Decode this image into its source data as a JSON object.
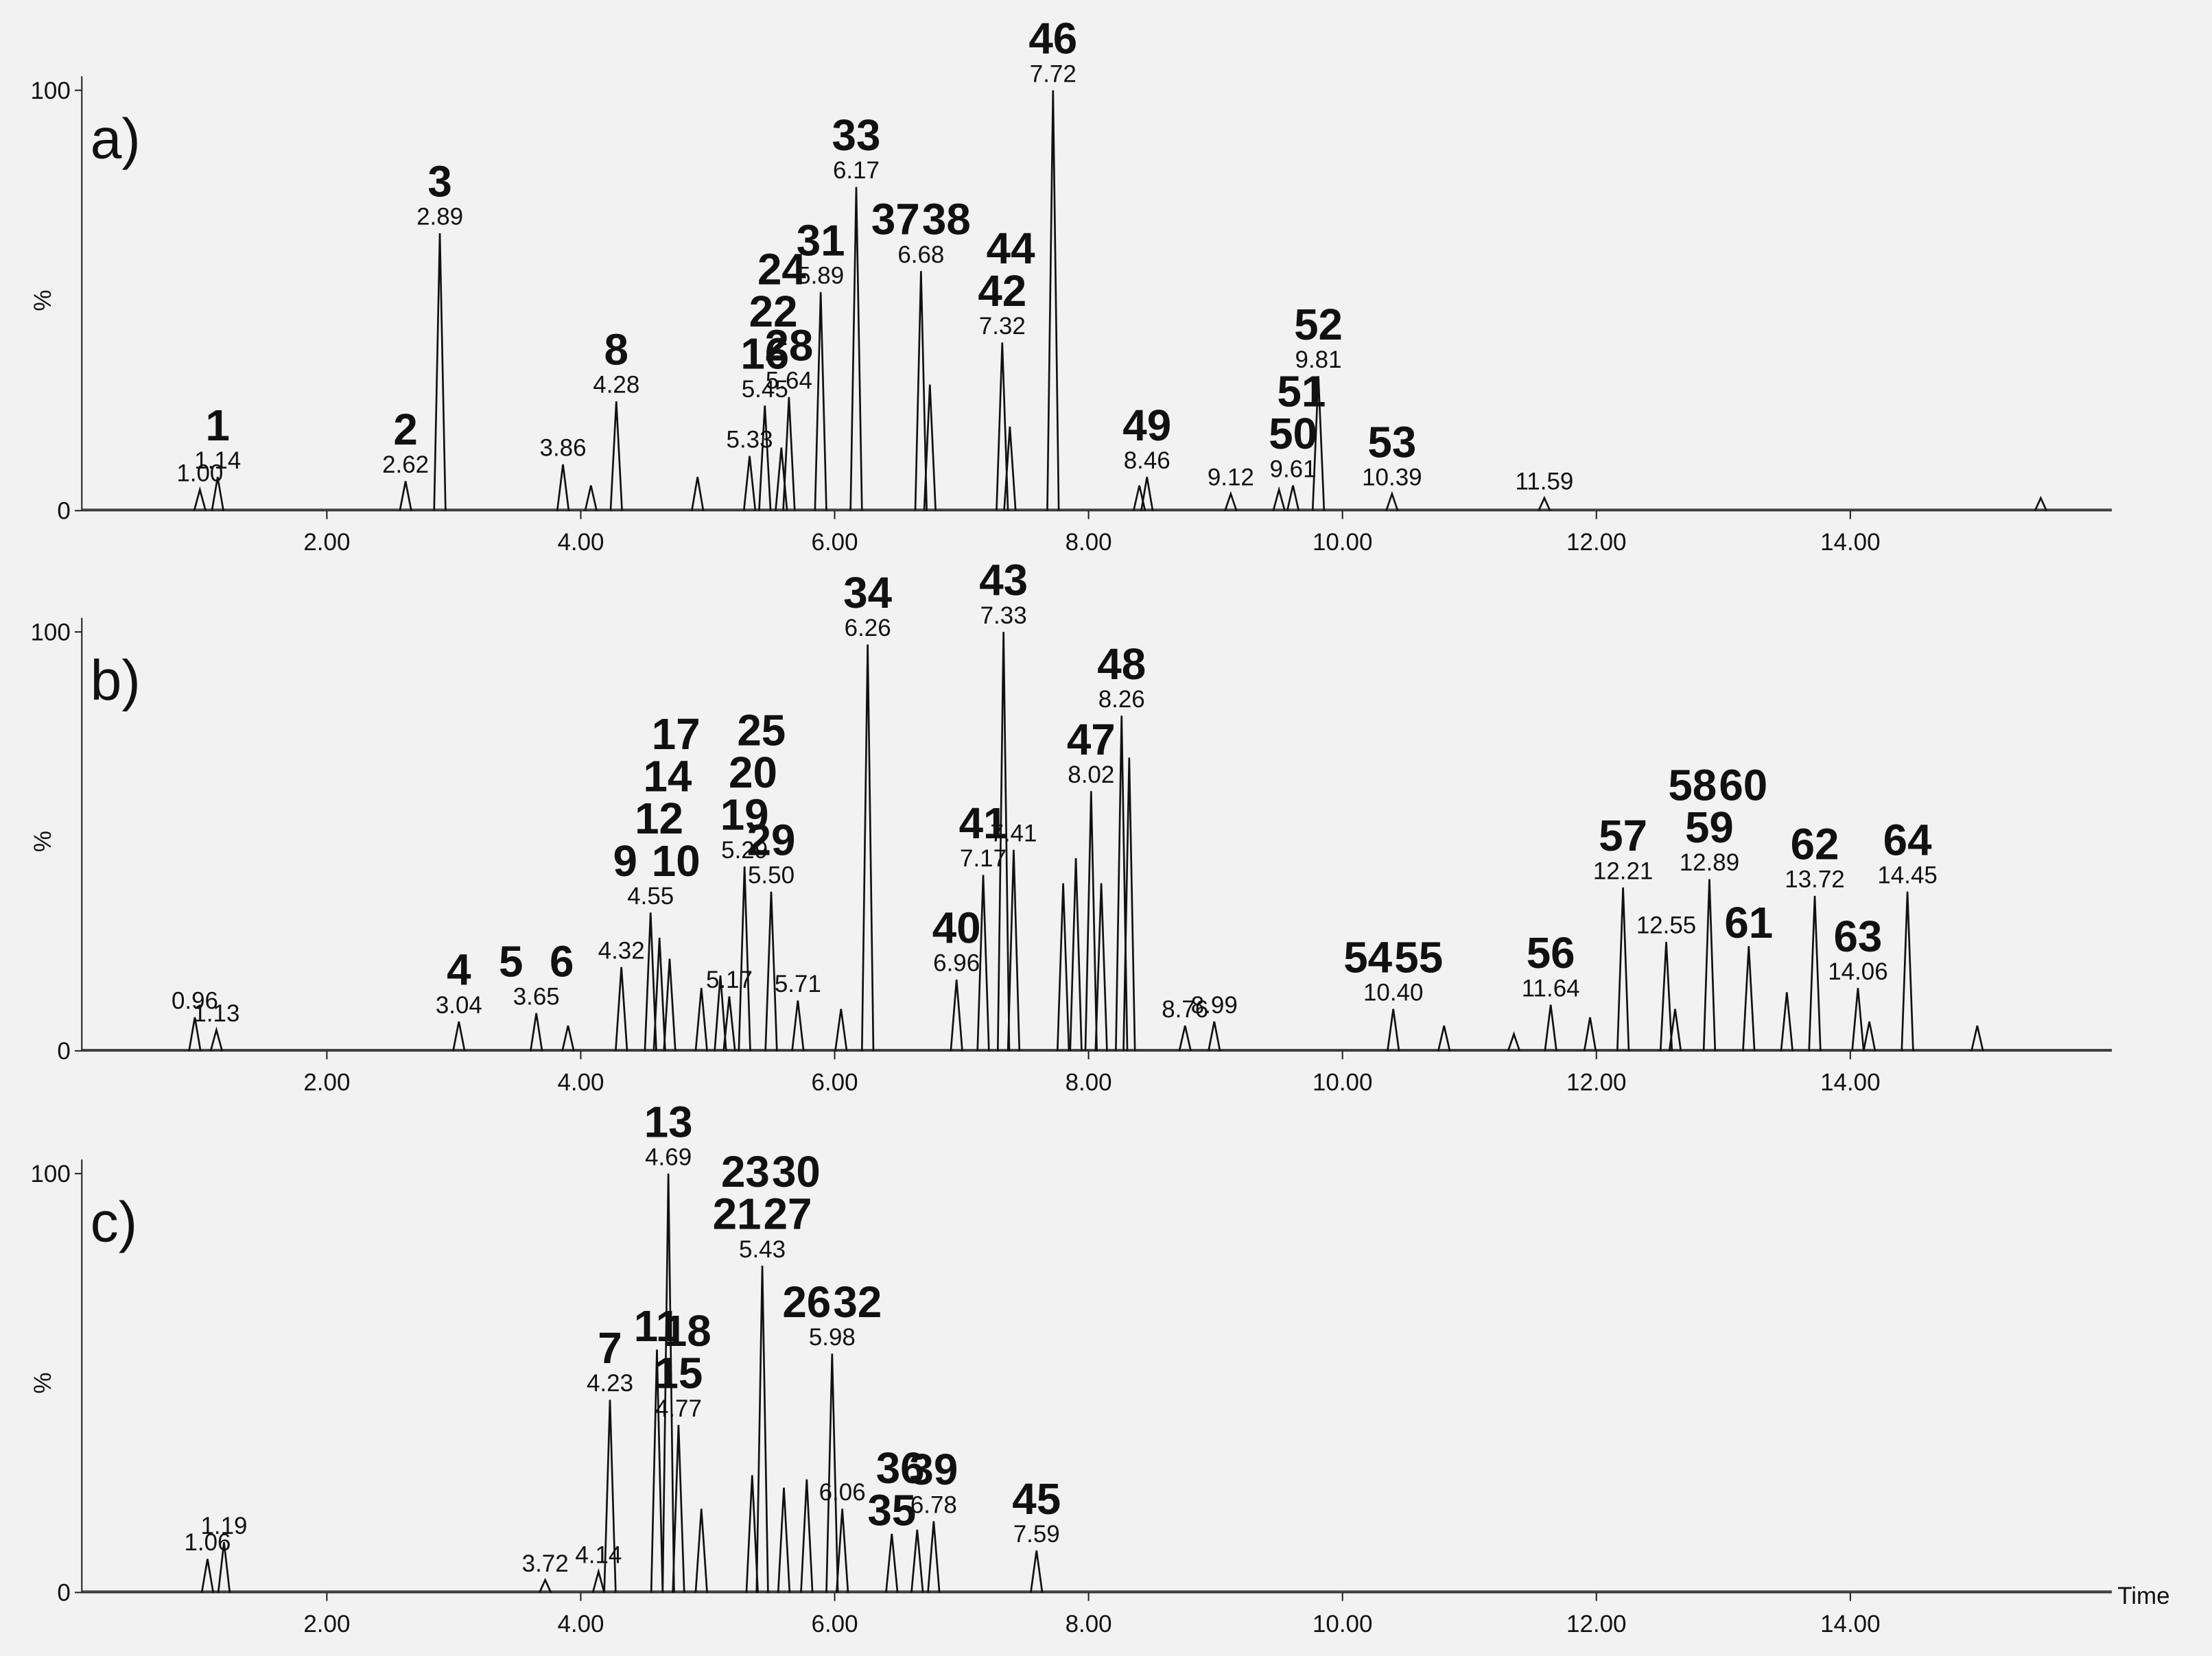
{
  "chart_data": [
    {
      "type": "line",
      "panel_label": "a)",
      "ylabel": "%",
      "xlim": [
        0.07,
        16.06
      ],
      "ylim": [
        0,
        100
      ],
      "xticks": [
        {
          "value": 2,
          "label": "2.00"
        },
        {
          "value": 4,
          "label": "4.00"
        },
        {
          "value": 6,
          "label": "6.00"
        },
        {
          "value": 8,
          "label": "8.00"
        },
        {
          "value": 10,
          "label": "10.00"
        },
        {
          "value": 12,
          "label": "12.00"
        },
        {
          "value": 14,
          "label": "14.00"
        }
      ],
      "yticks": [
        0,
        100
      ],
      "peaks": [
        {
          "x": 1.0,
          "y": 5,
          "label": "1.00"
        },
        {
          "x": 1.14,
          "y": 8,
          "label": "1.14",
          "ids": [
            [
              "1"
            ]
          ]
        },
        {
          "x": 2.62,
          "y": 7,
          "label": "2.62",
          "ids": [
            [
              "2"
            ]
          ]
        },
        {
          "x": 2.89,
          "y": 66,
          "label": "2.89",
          "ids": [
            [
              "3"
            ]
          ]
        },
        {
          "x": 3.86,
          "y": 11,
          "label": "3.86"
        },
        {
          "x": 4.08,
          "y": 6
        },
        {
          "x": 4.28,
          "y": 26,
          "label": "4.28",
          "ids": [
            [
              "8"
            ]
          ]
        },
        {
          "x": 4.92,
          "y": 8
        },
        {
          "x": 5.33,
          "y": 13,
          "label": "5.33"
        },
        {
          "x": 5.45,
          "y": 25,
          "label": "5.45",
          "ids": [
            [
              "16"
            ],
            [
              "22"
            ],
            [
              "24"
            ]
          ]
        },
        {
          "x": 5.58,
          "y": 15
        },
        {
          "x": 5.64,
          "y": 27,
          "label": "5.64",
          "ids": [
            [
              "28"
            ]
          ]
        },
        {
          "x": 5.89,
          "y": 52,
          "label": "5.89",
          "ids": [
            [
              "31"
            ]
          ]
        },
        {
          "x": 6.17,
          "y": 77,
          "label": "6.17",
          "ids": [
            [
              "33"
            ]
          ]
        },
        {
          "x": 6.68,
          "y": 57,
          "label": "6.68",
          "ids": [
            [
              "37",
              "38"
            ]
          ]
        },
        {
          "x": 6.75,
          "y": 30
        },
        {
          "x": 7.32,
          "y": 40,
          "label": "7.32",
          "ids": [
            [
              "42"
            ],
            [
              "44"
            ]
          ]
        },
        {
          "x": 7.38,
          "y": 20
        },
        {
          "x": 7.72,
          "y": 100,
          "label": "7.72",
          "ids": [
            [
              "46"
            ]
          ]
        },
        {
          "x": 8.4,
          "y": 6
        },
        {
          "x": 8.46,
          "y": 8,
          "label": "8.46",
          "ids": [
            [
              "49"
            ]
          ]
        },
        {
          "x": 9.12,
          "y": 4,
          "label": "9.12"
        },
        {
          "x": 9.5,
          "y": 5
        },
        {
          "x": 9.61,
          "y": 6,
          "label": "9.61",
          "ids": [
            [
              "50"
            ],
            [
              "51"
            ]
          ]
        },
        {
          "x": 9.81,
          "y": 32,
          "label": "9.81",
          "ids": [
            [
              "52"
            ]
          ]
        },
        {
          "x": 10.39,
          "y": 4,
          "label": "10.39",
          "ids": [
            [
              "53"
            ]
          ]
        },
        {
          "x": 11.59,
          "y": 3,
          "label": "11.59"
        },
        {
          "x": 15.5,
          "y": 3
        }
      ]
    },
    {
      "type": "line",
      "panel_label": "b)",
      "ylabel": "%",
      "xlim": [
        0.07,
        16.06
      ],
      "ylim": [
        0,
        100
      ],
      "xticks": [
        {
          "value": 2,
          "label": "2.00"
        },
        {
          "value": 4,
          "label": "4.00"
        },
        {
          "value": 6,
          "label": "6.00"
        },
        {
          "value": 8,
          "label": "8.00"
        },
        {
          "value": 10,
          "label": "10.00"
        },
        {
          "value": 12,
          "label": "12.00"
        },
        {
          "value": 14,
          "label": "14.00"
        }
      ],
      "yticks": [
        0,
        100
      ],
      "peaks": [
        {
          "x": 0.96,
          "y": 8,
          "label": "0.96"
        },
        {
          "x": 1.13,
          "y": 5,
          "label": "1.13"
        },
        {
          "x": 3.04,
          "y": 7,
          "label": "3.04",
          "ids": [
            [
              "4"
            ]
          ]
        },
        {
          "x": 3.65,
          "y": 9,
          "label": "3.65",
          "ids": [
            [
              "5",
              "6"
            ]
          ]
        },
        {
          "x": 3.9,
          "y": 6
        },
        {
          "x": 4.32,
          "y": 20,
          "label": "4.32"
        },
        {
          "x": 4.55,
          "y": 33,
          "label": "4.55",
          "ids": [
            [
              "9",
              "10"
            ],
            [
              "12"
            ],
            [
              "14"
            ],
            [
              "17"
            ]
          ]
        },
        {
          "x": 4.62,
          "y": 27
        },
        {
          "x": 4.7,
          "y": 22
        },
        {
          "x": 4.95,
          "y": 15
        },
        {
          "x": 5.1,
          "y": 18
        },
        {
          "x": 5.17,
          "y": 13,
          "label": "5.17"
        },
        {
          "x": 5.29,
          "y": 44,
          "label": "5.29",
          "ids": [
            [
              "19"
            ],
            [
              "20"
            ],
            [
              "25"
            ]
          ]
        },
        {
          "x": 5.5,
          "y": 38,
          "label": "5.50",
          "ids": [
            [
              "29"
            ]
          ]
        },
        {
          "x": 5.71,
          "y": 12,
          "label": "5.71"
        },
        {
          "x": 6.05,
          "y": 10
        },
        {
          "x": 6.26,
          "y": 97,
          "label": "6.26",
          "ids": [
            [
              "34"
            ]
          ]
        },
        {
          "x": 6.96,
          "y": 17,
          "label": "6.96",
          "ids": [
            [
              "40"
            ]
          ]
        },
        {
          "x": 7.17,
          "y": 42,
          "label": "7.17",
          "ids": [
            [
              "41"
            ]
          ]
        },
        {
          "x": 7.33,
          "y": 100,
          "label": "7.33",
          "ids": [
            [
              "43"
            ]
          ]
        },
        {
          "x": 7.41,
          "y": 48,
          "label": "7.41"
        },
        {
          "x": 7.8,
          "y": 40
        },
        {
          "x": 7.9,
          "y": 46
        },
        {
          "x": 8.02,
          "y": 62,
          "label": "8.02",
          "ids": [
            [
              "47"
            ]
          ]
        },
        {
          "x": 8.1,
          "y": 40
        },
        {
          "x": 8.26,
          "y": 80,
          "label": "8.26",
          "ids": [
            [
              "48"
            ]
          ]
        },
        {
          "x": 8.32,
          "y": 70
        },
        {
          "x": 8.76,
          "y": 6,
          "label": "8.76"
        },
        {
          "x": 8.99,
          "y": 7,
          "label": "8.99"
        },
        {
          "x": 10.4,
          "y": 10,
          "label": "10.40",
          "ids": [
            [
              "54",
              "55"
            ]
          ]
        },
        {
          "x": 10.8,
          "y": 6
        },
        {
          "x": 11.35,
          "y": 4
        },
        {
          "x": 11.64,
          "y": 11,
          "label": "11.64",
          "ids": [
            [
              "56"
            ]
          ]
        },
        {
          "x": 11.95,
          "y": 8
        },
        {
          "x": 12.21,
          "y": 39,
          "label": "12.21",
          "ids": [
            [
              "57"
            ]
          ]
        },
        {
          "x": 12.55,
          "y": 26,
          "label": "12.55"
        },
        {
          "x": 12.62,
          "y": 10
        },
        {
          "x": 12.89,
          "y": 41,
          "label": "12.89",
          "ids": [
            [
              "59"
            ],
            [
              "58",
              "60"
            ]
          ]
        },
        {
          "x": 13.2,
          "y": 25,
          "ids": [
            [
              "61"
            ]
          ]
        },
        {
          "x": 13.5,
          "y": 14
        },
        {
          "x": 13.72,
          "y": 37,
          "label": "13.72",
          "ids": [
            [
              "62"
            ]
          ]
        },
        {
          "x": 14.06,
          "y": 15,
          "label": "14.06",
          "ids": [
            [
              "63"
            ]
          ]
        },
        {
          "x": 14.15,
          "y": 7
        },
        {
          "x": 14.45,
          "y": 38,
          "label": "14.45",
          "ids": [
            [
              "64"
            ]
          ]
        },
        {
          "x": 15.0,
          "y": 6
        }
      ]
    },
    {
      "type": "line",
      "panel_label": "c)",
      "ylabel": "%",
      "xlabel": "Time",
      "xlim": [
        0.07,
        16.06
      ],
      "ylim": [
        0,
        100
      ],
      "xticks": [
        {
          "value": 2,
          "label": "2.00"
        },
        {
          "value": 4,
          "label": "4.00"
        },
        {
          "value": 6,
          "label": "6.00"
        },
        {
          "value": 8,
          "label": "8.00"
        },
        {
          "value": 10,
          "label": "10.00"
        },
        {
          "value": 12,
          "label": "12.00"
        },
        {
          "value": 14,
          "label": "14.00"
        }
      ],
      "yticks": [
        0,
        100
      ],
      "peaks": [
        {
          "x": 1.06,
          "y": 8,
          "label": "1.06"
        },
        {
          "x": 1.19,
          "y": 12,
          "label": "1.19"
        },
        {
          "x": 3.72,
          "y": 3,
          "label": "3.72"
        },
        {
          "x": 4.14,
          "y": 5,
          "label": "4.14"
        },
        {
          "x": 4.23,
          "y": 46,
          "label": "4.23",
          "ids": [
            [
              "7"
            ]
          ]
        },
        {
          "x": 4.6,
          "y": 58,
          "ids": [
            [
              "11"
            ]
          ]
        },
        {
          "x": 4.69,
          "y": 100,
          "label": "4.69",
          "ids": [
            [
              "13"
            ]
          ]
        },
        {
          "x": 4.77,
          "y": 40,
          "label": "4.77",
          "ids": [
            [
              "15"
            ],
            [
              "18"
            ]
          ]
        },
        {
          "x": 4.95,
          "y": 20
        },
        {
          "x": 5.35,
          "y": 28
        },
        {
          "x": 5.43,
          "y": 78,
          "label": "5.43",
          "ids": [
            [
              "21",
              "27"
            ],
            [
              "23",
              "30"
            ]
          ]
        },
        {
          "x": 5.6,
          "y": 25
        },
        {
          "x": 5.78,
          "y": 27
        },
        {
          "x": 5.98,
          "y": 57,
          "label": "5.98",
          "ids": [
            [
              "26",
              "32"
            ]
          ]
        },
        {
          "x": 6.06,
          "y": 20,
          "label": "6.06"
        },
        {
          "x": 6.45,
          "y": 14,
          "ids": [
            [
              "35"
            ],
            [
              "36"
            ]
          ]
        },
        {
          "x": 6.65,
          "y": 15
        },
        {
          "x": 6.78,
          "y": 17,
          "label": "6.78",
          "ids": [
            [
              "39"
            ]
          ]
        },
        {
          "x": 7.59,
          "y": 10,
          "label": "7.59",
          "ids": [
            [
              "45"
            ]
          ]
        }
      ]
    }
  ]
}
